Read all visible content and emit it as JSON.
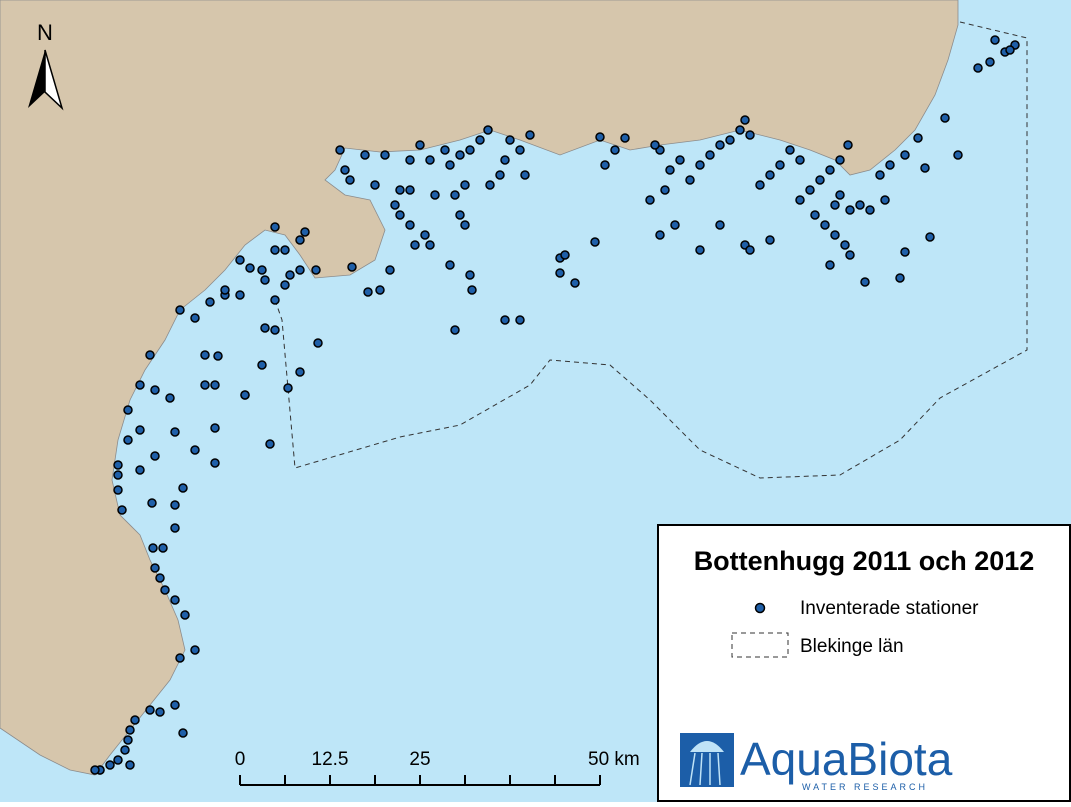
{
  "north_label": "N",
  "legend": {
    "title": "Bottenhugg 2011 och 2012",
    "items": [
      "Inventerade stationer",
      "Blekinge län"
    ]
  },
  "scale_bar": {
    "labels": [
      "0",
      "12.5",
      "25",
      "50 km"
    ]
  },
  "logo": {
    "name": "AquaBiota",
    "tagline": "WATER RESEARCH"
  }
}
